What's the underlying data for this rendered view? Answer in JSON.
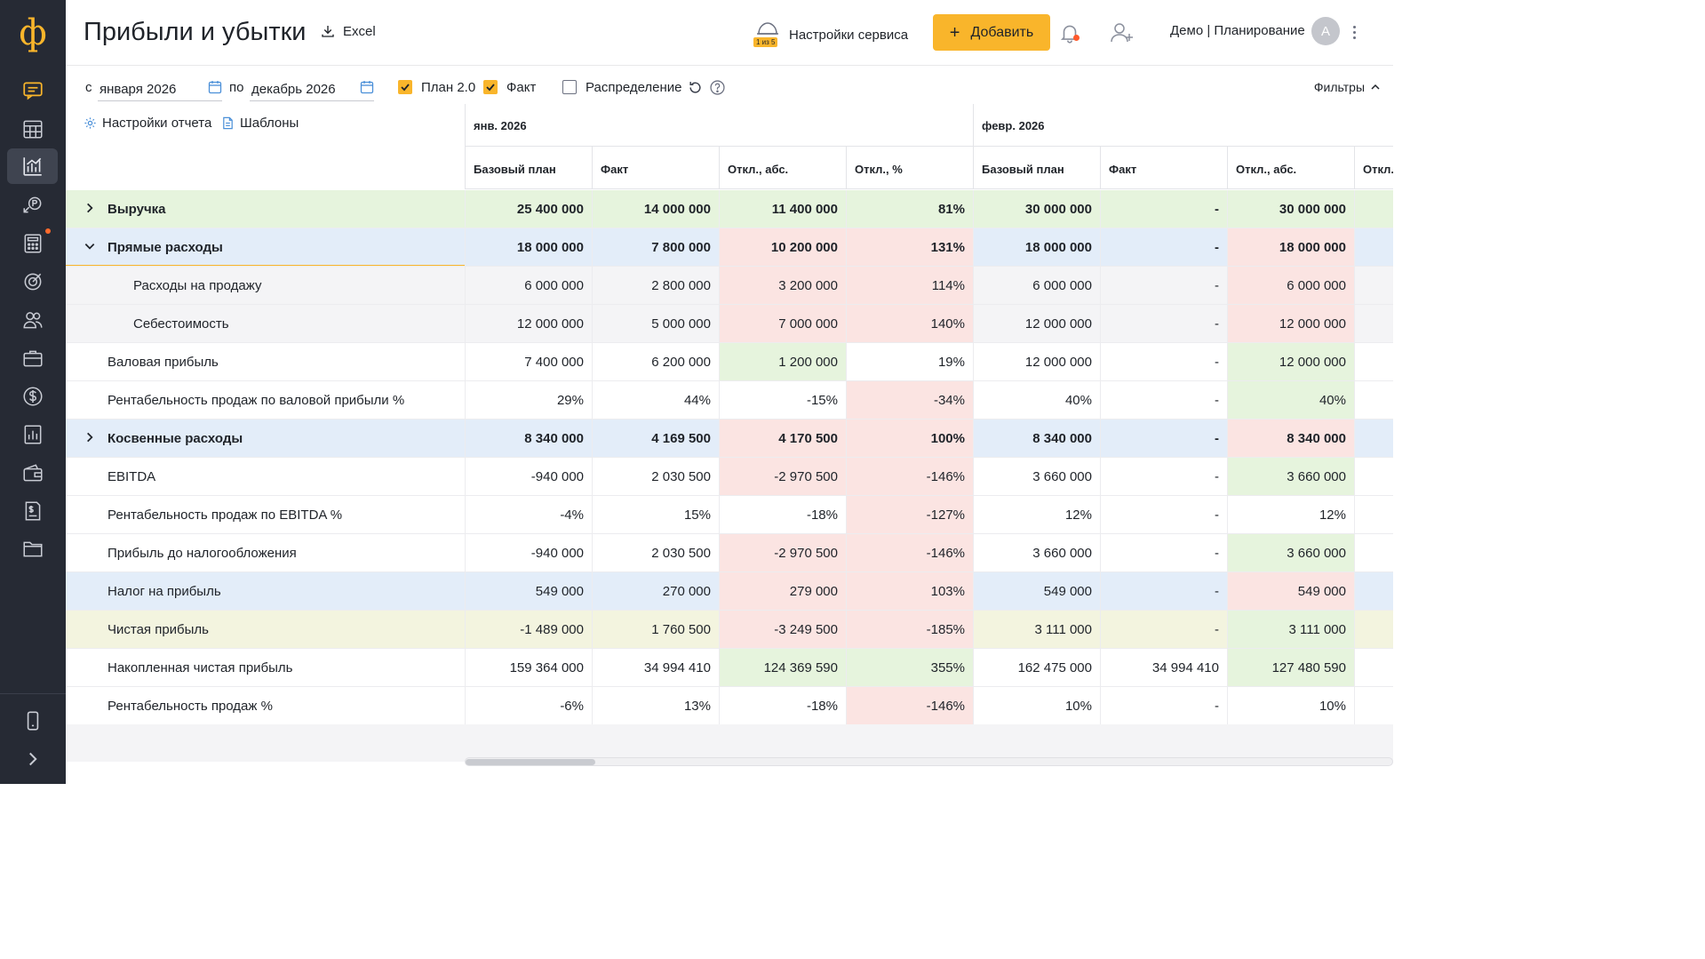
{
  "app": {
    "logo": "ф",
    "title": "Прибыли и убытки",
    "excel_label": "Excel"
  },
  "sidebar": {
    "items": [
      {
        "icon": "chat-icon",
        "color": "#f9b52b"
      },
      {
        "icon": "calendar-grid-icon"
      },
      {
        "icon": "bar-chart-icon",
        "active": true
      },
      {
        "icon": "payment-icon"
      },
      {
        "icon": "calculator-icon",
        "dot": true
      },
      {
        "icon": "target-icon"
      },
      {
        "icon": "users-icon"
      },
      {
        "icon": "briefcase-icon"
      },
      {
        "icon": "dollar-icon"
      },
      {
        "icon": "report-icon"
      },
      {
        "icon": "wallet-icon"
      },
      {
        "icon": "invoice-icon"
      },
      {
        "icon": "folder-icon"
      }
    ],
    "bottom": [
      {
        "icon": "mobile-icon"
      },
      {
        "icon": "expand-icon"
      }
    ]
  },
  "header": {
    "service_settings": "Настройки сервиса",
    "service_badge": "1 из 5",
    "add_button": "Добавить",
    "user_name": "Демо | Планирование",
    "avatar_letter": "А"
  },
  "filters": {
    "from_prefix": "с",
    "from_value": "января 2026",
    "to_prefix": "по",
    "to_value": "декабрь 2026",
    "plan_label": "План 2.0",
    "plan_checked": true,
    "fact_label": "Факт",
    "fact_checked": true,
    "distribution_label": "Распределение",
    "distribution_checked": false,
    "filters_label": "Фильтры"
  },
  "toolbar": {
    "report_settings": "Настройки отчета",
    "templates": "Шаблоны"
  },
  "table": {
    "months": [
      "янв. 2026",
      "февр. 2026"
    ],
    "columns": [
      "Базовый план",
      "Факт",
      "Откл., абс.",
      "Откл., %",
      "Базовый план",
      "Факт",
      "Откл., абс.",
      "Откл."
    ],
    "rows": [
      {
        "name": "Выручка",
        "level": 0,
        "chevron": "right",
        "bold": true,
        "bg": "#e6f4dd",
        "values": [
          "25 400 000",
          "14 000 000",
          "11 400 000",
          "81%",
          "30 000 000",
          "-",
          "30 000 000",
          ""
        ],
        "cell_bg": [
          "#e6f4dd",
          "#e6f4dd",
          "#e6f4dd",
          "#e6f4dd",
          "#e6f4dd",
          "#e6f4dd",
          "#e6f4dd",
          "#e6f4dd"
        ]
      },
      {
        "name": "Прямые расходы",
        "level": 0,
        "chevron": "down",
        "bold": true,
        "bg": "#e3edf9",
        "values": [
          "18 000 000",
          "7 800 000",
          "10 200 000",
          "131%",
          "18 000 000",
          "-",
          "18 000 000",
          ""
        ],
        "cell_bg": [
          "#e3edf9",
          "#e3edf9",
          "#fbe4e2",
          "#fbe4e2",
          "#e3edf9",
          "#e3edf9",
          "#fbe4e2",
          "#e3edf9"
        ]
      },
      {
        "name": "Расходы на продажу",
        "level": 1,
        "bg": "#f4f4f6",
        "values": [
          "6 000 000",
          "2 800 000",
          "3 200 000",
          "114%",
          "6 000 000",
          "-",
          "6 000 000",
          ""
        ],
        "cell_bg": [
          "#f4f4f6",
          "#f4f4f6",
          "#fbe4e2",
          "#fbe4e2",
          "#f4f4f6",
          "#f4f4f6",
          "#fbe4e2",
          "#f4f4f6"
        ]
      },
      {
        "name": "Себестоимость",
        "level": 1,
        "bg": "#f4f4f6",
        "values": [
          "12 000 000",
          "5 000 000",
          "7 000 000",
          "140%",
          "12 000 000",
          "-",
          "12 000 000",
          ""
        ],
        "cell_bg": [
          "#f4f4f6",
          "#f4f4f6",
          "#fbe4e2",
          "#fbe4e2",
          "#f4f4f6",
          "#f4f4f6",
          "#fbe4e2",
          "#f4f4f6"
        ]
      },
      {
        "name": "Валовая прибыль",
        "level": 0,
        "bg": "#ffffff",
        "values": [
          "7 400 000",
          "6 200 000",
          "1 200 000",
          "19%",
          "12 000 000",
          "-",
          "12 000 000",
          ""
        ],
        "cell_bg": [
          "#ffffff",
          "#ffffff",
          "#e6f4dd",
          "#ffffff",
          "#ffffff",
          "#ffffff",
          "#e6f4dd",
          "#ffffff"
        ]
      },
      {
        "name": "Рентабельность продаж по валовой прибыли %",
        "level": 0,
        "bg": "#ffffff",
        "values": [
          "29%",
          "44%",
          "-15%",
          "-34%",
          "40%",
          "-",
          "40%",
          ""
        ],
        "cell_bg": [
          "#ffffff",
          "#ffffff",
          "#ffffff",
          "#fbe4e2",
          "#ffffff",
          "#ffffff",
          "#e6f4dd",
          "#ffffff"
        ]
      },
      {
        "name": "Косвенные расходы",
        "level": 0,
        "chevron": "right",
        "bold": true,
        "bg": "#e3edf9",
        "values": [
          "8 340 000",
          "4 169 500",
          "4 170 500",
          "100%",
          "8 340 000",
          "-",
          "8 340 000",
          ""
        ],
        "cell_bg": [
          "#e3edf9",
          "#e3edf9",
          "#fbe4e2",
          "#fbe4e2",
          "#e3edf9",
          "#e3edf9",
          "#fbe4e2",
          "#e3edf9"
        ]
      },
      {
        "name": "EBITDA",
        "level": 0,
        "bg": "#ffffff",
        "values": [
          "-940 000",
          "2 030 500",
          "-2 970 500",
          "-146%",
          "3 660 000",
          "-",
          "3 660 000",
          ""
        ],
        "cell_bg": [
          "#ffffff",
          "#ffffff",
          "#fbe4e2",
          "#fbe4e2",
          "#ffffff",
          "#ffffff",
          "#e6f4dd",
          "#ffffff"
        ]
      },
      {
        "name": "Рентабельность продаж по EBITDA %",
        "level": 0,
        "bg": "#ffffff",
        "values": [
          "-4%",
          "15%",
          "-18%",
          "-127%",
          "12%",
          "-",
          "12%",
          ""
        ],
        "cell_bg": [
          "#ffffff",
          "#ffffff",
          "#ffffff",
          "#fbe4e2",
          "#ffffff",
          "#ffffff",
          "#ffffff",
          "#ffffff"
        ]
      },
      {
        "name": "Прибыль до налогообложения",
        "level": 0,
        "bg": "#ffffff",
        "values": [
          "-940 000",
          "2 030 500",
          "-2 970 500",
          "-146%",
          "3 660 000",
          "-",
          "3 660 000",
          ""
        ],
        "cell_bg": [
          "#ffffff",
          "#ffffff",
          "#fbe4e2",
          "#fbe4e2",
          "#ffffff",
          "#ffffff",
          "#e6f4dd",
          "#ffffff"
        ]
      },
      {
        "name": "Налог на прибыль",
        "level": 0,
        "bg": "#e3edf9",
        "values": [
          "549 000",
          "270 000",
          "279 000",
          "103%",
          "549 000",
          "-",
          "549 000",
          ""
        ],
        "cell_bg": [
          "#e3edf9",
          "#e3edf9",
          "#fbe4e2",
          "#fbe4e2",
          "#e3edf9",
          "#e3edf9",
          "#fbe4e2",
          "#e3edf9"
        ]
      },
      {
        "name": "Чистая прибыль",
        "level": 0,
        "bg": "#f3f4df",
        "values": [
          "-1 489 000",
          "1 760 500",
          "-3 249 500",
          "-185%",
          "3 111 000",
          "-",
          "3 111 000",
          ""
        ],
        "cell_bg": [
          "#f3f4df",
          "#f3f4df",
          "#fbe4e2",
          "#fbe4e2",
          "#f3f4df",
          "#f3f4df",
          "#e6f4dd",
          "#f3f4df"
        ]
      },
      {
        "name": "Накопленная чистая прибыль",
        "level": 0,
        "bg": "#ffffff",
        "values": [
          "159 364 000",
          "34 994 410",
          "124 369 590",
          "355%",
          "162 475 000",
          "34 994 410",
          "127 480 590",
          ""
        ],
        "cell_bg": [
          "#ffffff",
          "#ffffff",
          "#e6f4dd",
          "#e6f4dd",
          "#ffffff",
          "#ffffff",
          "#e6f4dd",
          "#ffffff"
        ]
      },
      {
        "name": "Рентабельность продаж %",
        "level": 0,
        "bg": "#ffffff",
        "values": [
          "-6%",
          "13%",
          "-18%",
          "-146%",
          "10%",
          "-",
          "10%",
          ""
        ],
        "cell_bg": [
          "#ffffff",
          "#ffffff",
          "#ffffff",
          "#fbe4e2",
          "#ffffff",
          "#ffffff",
          "#ffffff",
          "#ffffff"
        ]
      }
    ]
  },
  "colors": {
    "accent": "#f9b52b",
    "sidebar": "#262a34",
    "positive": "#e6f4dd",
    "negative": "#fbe4e2",
    "group": "#e3edf9"
  }
}
